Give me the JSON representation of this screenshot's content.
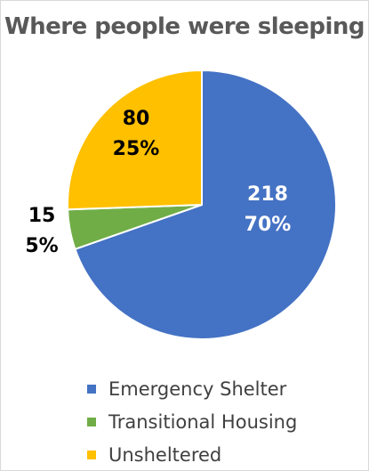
{
  "chart_data": {
    "type": "pie",
    "title": "Where people were sleeping",
    "slices": [
      {
        "name": "Emergency Shelter",
        "value": 218,
        "percent": "70%",
        "color": "#4472C4",
        "label_color": "#ffffff"
      },
      {
        "name": "Transitional Housing",
        "value": 15,
        "percent": "5%",
        "color": "#70AD47",
        "label_color": "#000000"
      },
      {
        "name": "Unsheltered",
        "value": 80,
        "percent": "25%",
        "color": "#FFC000",
        "label_color": "#000000"
      }
    ],
    "legend_position": "bottom"
  }
}
